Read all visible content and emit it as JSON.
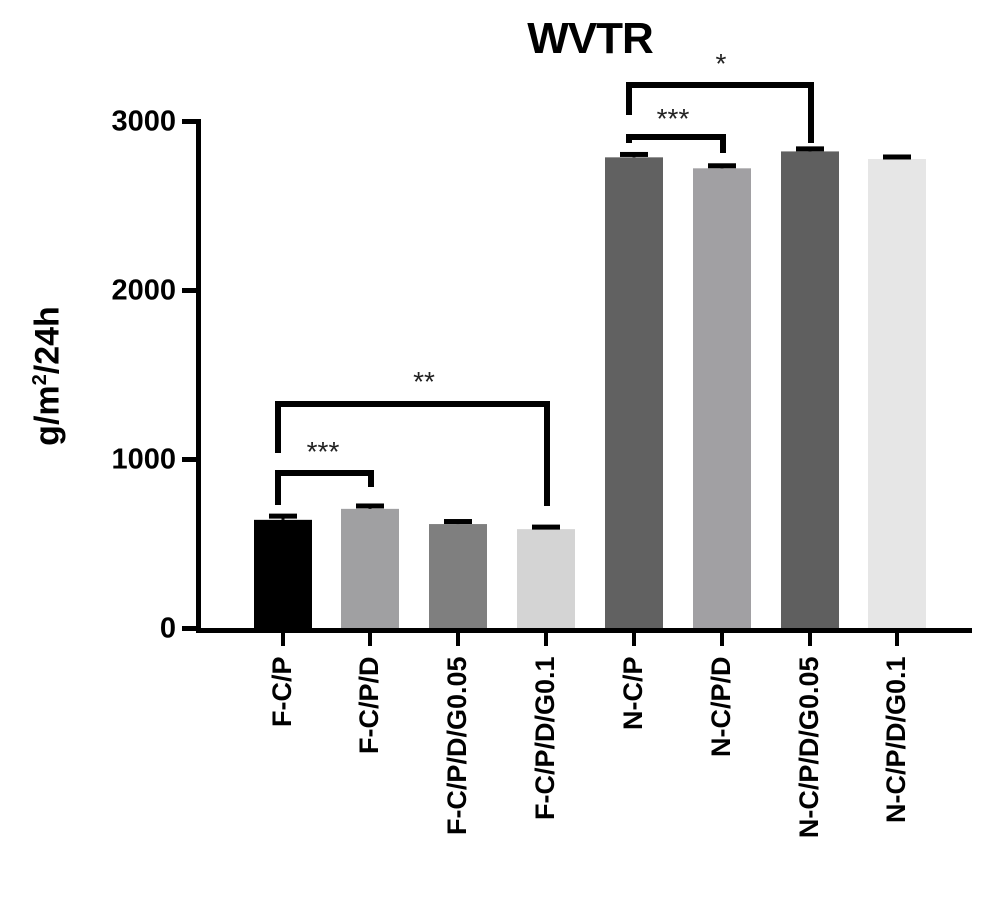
{
  "chart_data": {
    "type": "bar",
    "title": "WVTR",
    "xlabel": "",
    "ylabel": "g/m²/24h",
    "ylabel_parts": {
      "pre": "g/m",
      "sup": "2",
      "post": "/24h"
    },
    "ylim": [
      0,
      3000
    ],
    "yticks": [
      0,
      1000,
      2000,
      3000
    ],
    "grid": false,
    "legend": null,
    "categories": [
      "F-C/P",
      "F-C/P/D",
      "F-C/P/D/G0.05",
      "F-C/P/D/G0.1",
      "N-C/P",
      "N-C/P/D",
      "N-C/P/D/G0.05",
      "N-C/P/D/G0.1"
    ],
    "values": [
      640,
      705,
      615,
      585,
      2785,
      2720,
      2820,
      2775
    ],
    "errors": [
      25,
      20,
      18,
      15,
      20,
      18,
      18,
      15
    ],
    "bar_colors": [
      "#000000",
      "#a0a0a2",
      "#7f7f7f",
      "#d4d4d4",
      "#616161",
      "#a1a0a3",
      "#5f5f5f",
      "#e6e6e6"
    ],
    "significance": [
      {
        "from": 0,
        "to": 1,
        "label": "***"
      },
      {
        "from": 0,
        "to": 3,
        "label": "**"
      },
      {
        "from": 4,
        "to": 5,
        "label": "***"
      },
      {
        "from": 4,
        "to": 6,
        "label": "*"
      }
    ]
  }
}
